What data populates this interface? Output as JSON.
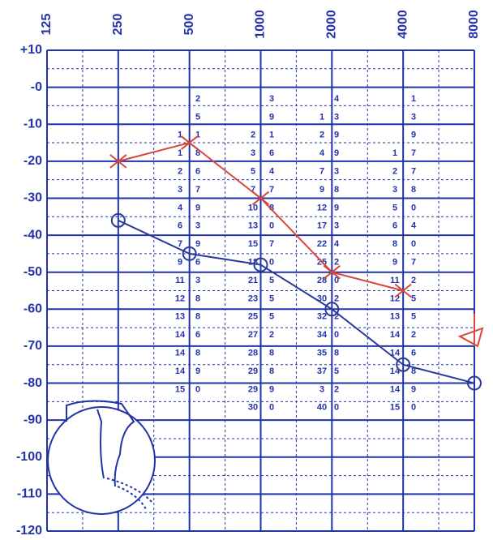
{
  "chart_data": {
    "type": "line",
    "xlog": true,
    "xlim": [
      125,
      8000
    ],
    "xticks": [
      125,
      250,
      500,
      1000,
      2000,
      4000,
      8000
    ],
    "ylim": [
      10,
      -120
    ],
    "yticks": [
      {
        "value": 10,
        "label": "+10"
      },
      {
        "value": 0,
        "label": "-0"
      },
      -10,
      -20,
      -30,
      -40,
      -50,
      -60,
      -70,
      -80,
      -90,
      -100,
      -110,
      -120
    ],
    "grid": true,
    "series": [
      {
        "color": "#d9463c",
        "marker": "x",
        "x": [
          250,
          500,
          1000,
          2000,
          4000
        ],
        "values": [
          -20,
          -15,
          -30,
          -50,
          -55
        ]
      },
      {
        "color": "#d9463c",
        "marker": "triangle",
        "x": [
          8000
        ],
        "values": [
          -70
        ]
      },
      {
        "color": "#2a3a9a",
        "marker": "o",
        "x": [
          250,
          500,
          1000,
          2000,
          4000,
          8000
        ],
        "values": [
          -36,
          -45,
          -48,
          -60,
          -75,
          -80
        ]
      }
    ],
    "color": "#2233aa"
  },
  "number_table": {
    "rows": [
      [
        null,
        "2",
        null,
        "3",
        null,
        "4",
        null,
        "1"
      ],
      [
        null,
        "5",
        null,
        "9",
        "1",
        "3",
        null,
        "3"
      ],
      [
        "1",
        "1",
        "2",
        "1",
        "2",
        "9",
        null,
        "9"
      ],
      [
        "1",
        "8",
        "3",
        "6",
        "4",
        "9",
        "1",
        "7"
      ],
      [
        "2",
        "6",
        "5",
        "4",
        "7",
        "3",
        "2",
        "7"
      ],
      [
        "3",
        "7",
        "7",
        "7",
        "9",
        "8",
        "3",
        "8"
      ],
      [
        "4",
        "9",
        "10",
        "8",
        "12",
        "9",
        "5",
        "0"
      ],
      [
        "6",
        "3",
        "13",
        "0",
        "17",
        "3",
        "6",
        "4"
      ],
      [
        "7",
        "9",
        "15",
        "7",
        "22",
        "4",
        "8",
        "0"
      ],
      [
        "9",
        "6",
        "18",
        "0",
        "25",
        "2",
        "9",
        "7"
      ],
      [
        "11",
        "3",
        "21",
        "5",
        "28",
        "0",
        "11",
        "2"
      ],
      [
        "12",
        "8",
        "23",
        "5",
        "30",
        "2",
        "12",
        "5"
      ],
      [
        "13",
        "8",
        "25",
        "5",
        "32",
        "2",
        "13",
        "5"
      ],
      [
        "14",
        "6",
        "27",
        "2",
        "34",
        "0",
        "14",
        "2"
      ],
      [
        "14",
        "8",
        "28",
        "8",
        "35",
        "8",
        "14",
        "6"
      ],
      [
        "14",
        "9",
        "29",
        "8",
        "37",
        "5",
        "14",
        "8"
      ],
      [
        "15",
        "0",
        "29",
        "9",
        "3",
        "2",
        "14",
        "9"
      ],
      [
        null,
        null,
        "30",
        "0",
        "40",
        "0",
        "15",
        "0"
      ]
    ]
  }
}
